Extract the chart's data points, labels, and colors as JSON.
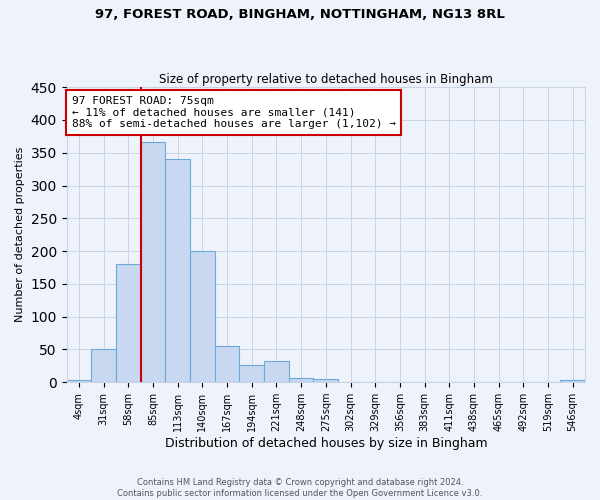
{
  "title1": "97, FOREST ROAD, BINGHAM, NOTTINGHAM, NG13 8RL",
  "title2": "Size of property relative to detached houses in Bingham",
  "xlabel": "Distribution of detached houses by size in Bingham",
  "ylabel": "Number of detached properties",
  "bar_labels": [
    "4sqm",
    "31sqm",
    "58sqm",
    "85sqm",
    "113sqm",
    "140sqm",
    "167sqm",
    "194sqm",
    "221sqm",
    "248sqm",
    "275sqm",
    "302sqm",
    "329sqm",
    "356sqm",
    "383sqm",
    "411sqm",
    "438sqm",
    "465sqm",
    "492sqm",
    "519sqm",
    "546sqm"
  ],
  "bar_values": [
    3,
    50,
    180,
    367,
    340,
    200,
    55,
    26,
    33,
    6,
    5,
    0,
    0,
    0,
    0,
    0,
    0,
    0,
    0,
    0,
    3
  ],
  "bar_color": "#c8d8f0",
  "bar_edge_color": "#6baad8",
  "vline_color": "#cc0000",
  "annotation_text": "97 FOREST ROAD: 75sqm\n← 11% of detached houses are smaller (141)\n88% of semi-detached houses are larger (1,102) →",
  "annotation_box_color": "#ffffff",
  "annotation_box_edge_color": "#cc0000",
  "ylim": [
    0,
    450
  ],
  "yticks": [
    0,
    50,
    100,
    150,
    200,
    250,
    300,
    350,
    400,
    450
  ],
  "footer1": "Contains HM Land Registry data © Crown copyright and database right 2024.",
  "footer2": "Contains public sector information licensed under the Open Government Licence v3.0.",
  "background_color": "#eef2fb",
  "grid_color": "#c8d4e8"
}
